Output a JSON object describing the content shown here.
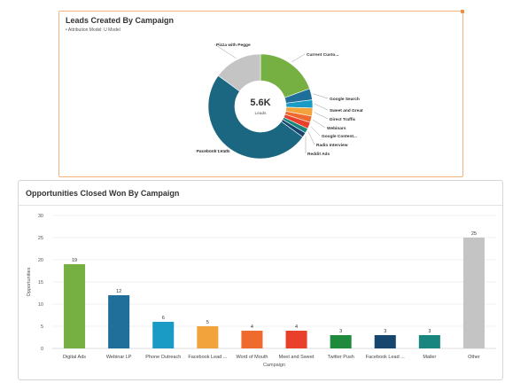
{
  "leads_card": {
    "title": "Leads Created By Campaign",
    "subtitle": "• Attribution Model: U Model"
  },
  "opps_card": {
    "title": "Opportunities Closed Won By Campaign"
  },
  "chart_data": [
    {
      "type": "pie",
      "variant": "donut",
      "center_value": "5.6K",
      "center_label": "Leads",
      "slices": [
        {
          "label": "Current Custo...",
          "value": 0.195,
          "color": "#76b043"
        },
        {
          "label": "Google Search",
          "value": 0.035,
          "color": "#1f6f9a"
        },
        {
          "label": "Sweet and Great",
          "value": 0.025,
          "color": "#1a9bc6"
        },
        {
          "label": "Direct Traffic",
          "value": 0.025,
          "color": "#f2a33c"
        },
        {
          "label": "Webinars",
          "value": 0.02,
          "color": "#ef6a2e"
        },
        {
          "label": "Google Content...",
          "value": 0.02,
          "color": "#e8402a"
        },
        {
          "label": "Radio Interview",
          "value": 0.015,
          "color": "#19857f"
        },
        {
          "label": "Reddit Ads",
          "value": 0.015,
          "color": "#16466e"
        },
        {
          "label": "Facebook Leads",
          "value": 0.5,
          "color": "#1b6680"
        },
        {
          "label": "Pizza with Pegge",
          "value": 0.15,
          "color": "#c4c4c4"
        }
      ]
    },
    {
      "type": "bar",
      "categories": [
        "Digital Ads",
        "Webinar LP",
        "Phone Outreach",
        "Facebook Lead ...",
        "Word of Mouth",
        "Meet and Sweet",
        "Twitter Push",
        "Facebook Lead ...",
        "Mailer",
        "Other"
      ],
      "values": [
        19,
        12,
        6,
        5,
        4,
        4,
        3,
        3,
        3,
        25
      ],
      "colors": [
        "#76b043",
        "#1f6f9a",
        "#1a9bc6",
        "#f2a33c",
        "#ef6a2e",
        "#e8402a",
        "#1f8a3c",
        "#16466e",
        "#19857f",
        "#c4c4c4"
      ],
      "xlabel": "Campaign",
      "ylabel": "Opportunities",
      "ylim": [
        0,
        30
      ],
      "yticks": [
        0,
        5,
        10,
        15,
        20,
        25,
        30
      ],
      "grid": true
    }
  ]
}
